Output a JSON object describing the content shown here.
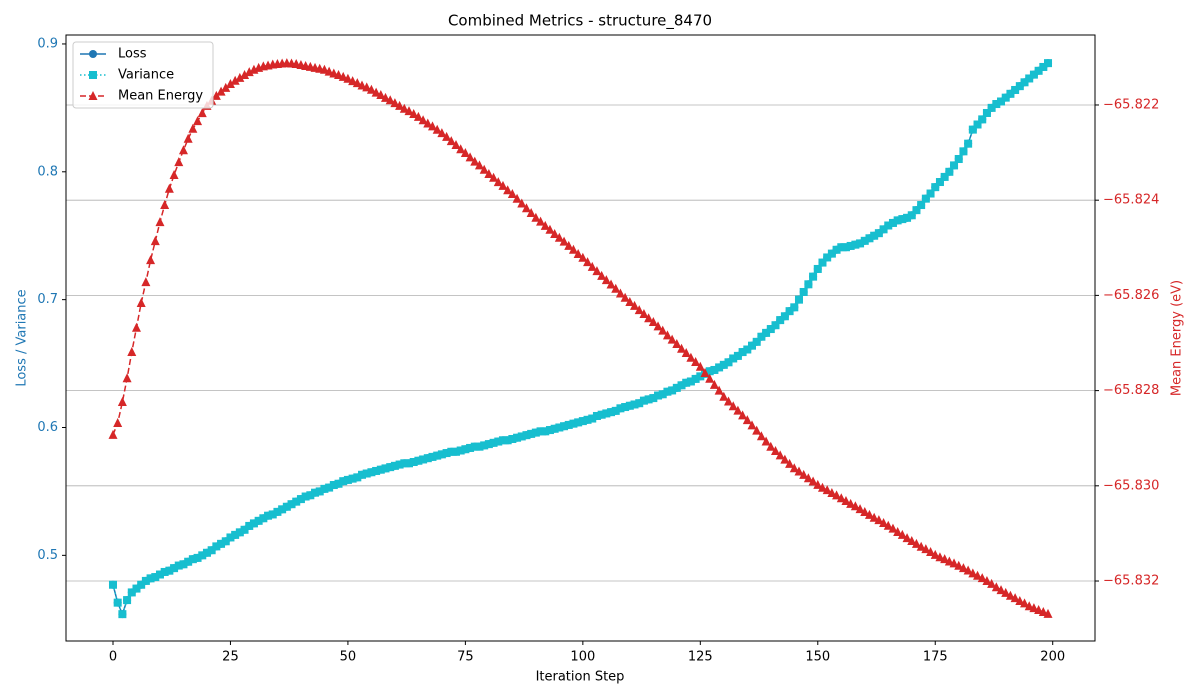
{
  "chart_data": {
    "type": "line",
    "title": "Combined Metrics - structure_8470",
    "x_label": "Iteration Step",
    "y_label": "Loss / Variance",
    "y2_label": "Mean Energy (eV)",
    "y_color": "#1f77b4",
    "y2_color": "#d62728",
    "xlim": [
      -10,
      209
    ],
    "xticks": [
      0,
      25,
      50,
      75,
      100,
      125,
      150,
      175,
      200
    ],
    "ylim": [
      0.433,
      0.907
    ],
    "yticks": [
      0.5,
      0.6,
      0.7,
      0.8,
      0.9
    ],
    "y2lim": [
      -65.83326,
      -65.82053
    ],
    "y2ticks": [
      {
        "value": -65.832,
        "label": "−65.832"
      },
      {
        "value": -65.83,
        "label": "−65.830"
      },
      {
        "value": -65.828,
        "label": "−65.828"
      },
      {
        "value": -65.826,
        "label": "−65.826"
      },
      {
        "value": -65.824,
        "label": "−65.824"
      },
      {
        "value": -65.822,
        "label": "−65.822"
      }
    ],
    "grid": "y2",
    "legend": "upper-left",
    "x": [
      0,
      1,
      2,
      3,
      4,
      5,
      6,
      7,
      8,
      9,
      10,
      11,
      12,
      13,
      14,
      15,
      16,
      17,
      18,
      19,
      20,
      21,
      22,
      23,
      24,
      25,
      26,
      27,
      28,
      29,
      30,
      31,
      32,
      33,
      34,
      35,
      36,
      37,
      38,
      39,
      40,
      41,
      42,
      43,
      44,
      45,
      46,
      47,
      48,
      49,
      50,
      51,
      52,
      53,
      54,
      55,
      56,
      57,
      58,
      59,
      60,
      61,
      62,
      63,
      64,
      65,
      66,
      67,
      68,
      69,
      70,
      71,
      72,
      73,
      74,
      75,
      76,
      77,
      78,
      79,
      80,
      81,
      82,
      83,
      84,
      85,
      86,
      87,
      88,
      89,
      90,
      91,
      92,
      93,
      94,
      95,
      96,
      97,
      98,
      99,
      100,
      101,
      102,
      103,
      104,
      105,
      106,
      107,
      108,
      109,
      110,
      111,
      112,
      113,
      114,
      115,
      116,
      117,
      118,
      119,
      120,
      121,
      122,
      123,
      124,
      125,
      126,
      127,
      128,
      129,
      130,
      131,
      132,
      133,
      134,
      135,
      136,
      137,
      138,
      139,
      140,
      141,
      142,
      143,
      144,
      145,
      146,
      147,
      148,
      149,
      150,
      151,
      152,
      153,
      154,
      155,
      156,
      157,
      158,
      159,
      160,
      161,
      162,
      163,
      164,
      165,
      166,
      167,
      168,
      169,
      170,
      171,
      172,
      173,
      174,
      175,
      176,
      177,
      178,
      179,
      180,
      181,
      182,
      183,
      184,
      185,
      186,
      187,
      188,
      189,
      190,
      191,
      192,
      193,
      194,
      195,
      196,
      197,
      198,
      199
    ],
    "series": [
      {
        "name": "Loss",
        "color": "#1f77b4",
        "marker": "circle",
        "linestyle": "solid",
        "axis": "y",
        "values": [
          0.477,
          0.463,
          0.454,
          0.465,
          0.471,
          0.474,
          0.477,
          0.48,
          0.482,
          0.483,
          0.485,
          0.487,
          0.488,
          0.49,
          0.492,
          0.493,
          0.495,
          0.497,
          0.498,
          0.5,
          0.502,
          0.504,
          0.507,
          0.509,
          0.511,
          0.514,
          0.516,
          0.518,
          0.52,
          0.523,
          0.525,
          0.527,
          0.529,
          0.531,
          0.532,
          0.534,
          0.536,
          0.538,
          0.54,
          0.542,
          0.544,
          0.546,
          0.547,
          0.549,
          0.55,
          0.552,
          0.553,
          0.555,
          0.556,
          0.558,
          0.559,
          0.56,
          0.561,
          0.563,
          0.564,
          0.565,
          0.566,
          0.567,
          0.568,
          0.569,
          0.57,
          0.571,
          0.572,
          0.572,
          0.573,
          0.574,
          0.575,
          0.576,
          0.577,
          0.578,
          0.579,
          0.58,
          0.581,
          0.581,
          0.582,
          0.583,
          0.584,
          0.585,
          0.585,
          0.586,
          0.587,
          0.588,
          0.589,
          0.59,
          0.59,
          0.591,
          0.592,
          0.593,
          0.594,
          0.595,
          0.596,
          0.597,
          0.597,
          0.598,
          0.599,
          0.6,
          0.601,
          0.602,
          0.603,
          0.604,
          0.605,
          0.606,
          0.607,
          0.609,
          0.61,
          0.611,
          0.612,
          0.613,
          0.615,
          0.616,
          0.617,
          0.618,
          0.619,
          0.621,
          0.622,
          0.623,
          0.625,
          0.626,
          0.628,
          0.629,
          0.631,
          0.633,
          0.635,
          0.636,
          0.638,
          0.64,
          0.642,
          0.644,
          0.645,
          0.647,
          0.649,
          0.651,
          0.654,
          0.656,
          0.659,
          0.661,
          0.664,
          0.667,
          0.671,
          0.674,
          0.677,
          0.68,
          0.684,
          0.687,
          0.691,
          0.694,
          0.7,
          0.706,
          0.712,
          0.718,
          0.724,
          0.729,
          0.733,
          0.736,
          0.739,
          0.741,
          0.741,
          0.742,
          0.743,
          0.744,
          0.746,
          0.748,
          0.75,
          0.752,
          0.755,
          0.758,
          0.76,
          0.762,
          0.763,
          0.764,
          0.766,
          0.77,
          0.774,
          0.779,
          0.783,
          0.788,
          0.792,
          0.796,
          0.8,
          0.805,
          0.81,
          0.816,
          0.822,
          0.833,
          0.837,
          0.841,
          0.846,
          0.85,
          0.853,
          0.855,
          0.858,
          0.861,
          0.864,
          0.867,
          0.87,
          0.873,
          0.876,
          0.879,
          0.882,
          0.885
        ]
      },
      {
        "name": "Variance",
        "color": "#17becf",
        "marker": "square",
        "linestyle": "dotted",
        "axis": "y",
        "values": [
          0.477,
          0.463,
          0.454,
          0.465,
          0.471,
          0.474,
          0.477,
          0.48,
          0.482,
          0.483,
          0.485,
          0.487,
          0.488,
          0.49,
          0.492,
          0.493,
          0.495,
          0.497,
          0.498,
          0.5,
          0.502,
          0.504,
          0.507,
          0.509,
          0.511,
          0.514,
          0.516,
          0.518,
          0.52,
          0.523,
          0.525,
          0.527,
          0.529,
          0.531,
          0.532,
          0.534,
          0.536,
          0.538,
          0.54,
          0.542,
          0.544,
          0.546,
          0.547,
          0.549,
          0.55,
          0.552,
          0.553,
          0.555,
          0.556,
          0.558,
          0.559,
          0.56,
          0.561,
          0.563,
          0.564,
          0.565,
          0.566,
          0.567,
          0.568,
          0.569,
          0.57,
          0.571,
          0.572,
          0.572,
          0.573,
          0.574,
          0.575,
          0.576,
          0.577,
          0.578,
          0.579,
          0.58,
          0.581,
          0.581,
          0.582,
          0.583,
          0.584,
          0.585,
          0.585,
          0.586,
          0.587,
          0.588,
          0.589,
          0.59,
          0.59,
          0.591,
          0.592,
          0.593,
          0.594,
          0.595,
          0.596,
          0.597,
          0.597,
          0.598,
          0.599,
          0.6,
          0.601,
          0.602,
          0.603,
          0.604,
          0.605,
          0.606,
          0.607,
          0.609,
          0.61,
          0.611,
          0.612,
          0.613,
          0.615,
          0.616,
          0.617,
          0.618,
          0.619,
          0.621,
          0.622,
          0.623,
          0.625,
          0.626,
          0.628,
          0.629,
          0.631,
          0.633,
          0.635,
          0.636,
          0.638,
          0.64,
          0.642,
          0.644,
          0.645,
          0.647,
          0.649,
          0.651,
          0.654,
          0.656,
          0.659,
          0.661,
          0.664,
          0.667,
          0.671,
          0.674,
          0.677,
          0.68,
          0.684,
          0.687,
          0.691,
          0.694,
          0.7,
          0.706,
          0.712,
          0.718,
          0.724,
          0.729,
          0.733,
          0.736,
          0.739,
          0.741,
          0.741,
          0.742,
          0.743,
          0.744,
          0.746,
          0.748,
          0.75,
          0.752,
          0.755,
          0.758,
          0.76,
          0.762,
          0.763,
          0.764,
          0.766,
          0.77,
          0.774,
          0.779,
          0.783,
          0.788,
          0.792,
          0.796,
          0.8,
          0.805,
          0.81,
          0.816,
          0.822,
          0.833,
          0.837,
          0.841,
          0.846,
          0.85,
          0.853,
          0.855,
          0.858,
          0.861,
          0.864,
          0.867,
          0.87,
          0.873,
          0.876,
          0.879,
          0.882,
          0.885
        ]
      },
      {
        "name": "Mean Energy",
        "color": "#d62728",
        "marker": "triangle",
        "linestyle": "dashed",
        "axis": "y2",
        "values": [
          -65.82893,
          -65.82868,
          -65.82824,
          -65.82774,
          -65.82719,
          -65.82668,
          -65.82616,
          -65.82572,
          -65.82526,
          -65.82486,
          -65.82446,
          -65.8241,
          -65.82376,
          -65.82347,
          -65.8232,
          -65.82295,
          -65.82271,
          -65.8225,
          -65.82234,
          -65.82217,
          -65.82202,
          -65.82191,
          -65.82181,
          -65.82172,
          -65.82164,
          -65.82156,
          -65.82149,
          -65.82143,
          -65.82137,
          -65.82131,
          -65.82126,
          -65.82122,
          -65.82119,
          -65.82117,
          -65.82115,
          -65.82114,
          -65.82113,
          -65.82112,
          -65.82113,
          -65.82114,
          -65.82116,
          -65.82118,
          -65.8212,
          -65.82122,
          -65.82124,
          -65.82126,
          -65.8213,
          -65.82134,
          -65.82137,
          -65.82141,
          -65.82145,
          -65.8215,
          -65.82154,
          -65.82159,
          -65.82163,
          -65.82168,
          -65.82174,
          -65.82179,
          -65.82185,
          -65.8219,
          -65.82196,
          -65.82202,
          -65.82208,
          -65.82213,
          -65.82219,
          -65.82225,
          -65.82232,
          -65.82239,
          -65.82245,
          -65.82252,
          -65.82259,
          -65.82267,
          -65.82276,
          -65.82284,
          -65.82293,
          -65.82301,
          -65.8231,
          -65.82319,
          -65.82327,
          -65.82336,
          -65.82345,
          -65.82353,
          -65.82362,
          -65.8237,
          -65.82379,
          -65.82387,
          -65.82397,
          -65.82407,
          -65.82417,
          -65.82427,
          -65.82437,
          -65.82445,
          -65.82454,
          -65.82462,
          -65.82471,
          -65.82479,
          -65.82487,
          -65.82496,
          -65.82504,
          -65.82513,
          -65.82521,
          -65.8253,
          -65.8254,
          -65.82549,
          -65.82559,
          -65.82568,
          -65.82577,
          -65.82586,
          -65.82596,
          -65.82605,
          -65.82614,
          -65.82622,
          -65.82631,
          -65.82639,
          -65.82648,
          -65.82656,
          -65.82665,
          -65.82674,
          -65.82684,
          -65.82693,
          -65.82702,
          -65.82712,
          -65.82721,
          -65.82731,
          -65.8274,
          -65.8275,
          -65.82763,
          -65.82775,
          -65.82788,
          -65.828,
          -65.82813,
          -65.82823,
          -65.82833,
          -65.82842,
          -65.82852,
          -65.82862,
          -65.82873,
          -65.82884,
          -65.82896,
          -65.82907,
          -65.82918,
          -65.82927,
          -65.82936,
          -65.82945,
          -65.82954,
          -65.82963,
          -65.8297,
          -65.82977,
          -65.82984,
          -65.82991,
          -65.82998,
          -65.83004,
          -65.83009,
          -65.83015,
          -65.8302,
          -65.83026,
          -65.83032,
          -65.83038,
          -65.83043,
          -65.83049,
          -65.83055,
          -65.83061,
          -65.83067,
          -65.83072,
          -65.83078,
          -65.83084,
          -65.8309,
          -65.83097,
          -65.83103,
          -65.8311,
          -65.83116,
          -65.83122,
          -65.83128,
          -65.83133,
          -65.83139,
          -65.83145,
          -65.8315,
          -65.83154,
          -65.83159,
          -65.83163,
          -65.83168,
          -65.83173,
          -65.83178,
          -65.83184,
          -65.83189,
          -65.83194,
          -65.832,
          -65.83206,
          -65.83213,
          -65.83219,
          -65.83225,
          -65.83231,
          -65.83236,
          -65.83242,
          -65.83247,
          -65.83253,
          -65.83257,
          -65.83261,
          -65.83265,
          -65.83269
        ]
      }
    ]
  }
}
